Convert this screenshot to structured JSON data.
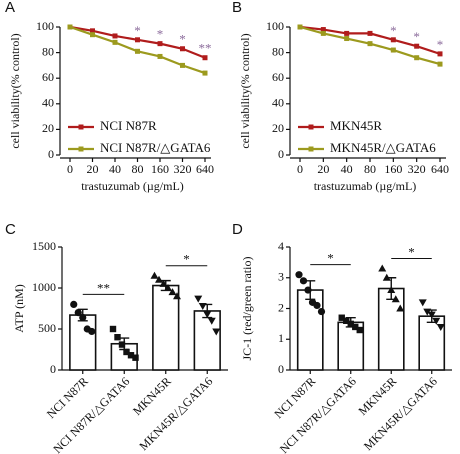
{
  "chart_data": [
    {
      "type": "line",
      "panel_label": "A",
      "xlabel": "trastuzumab (µg/mL)",
      "ylabel": "cell viability(% control)",
      "categories": [
        "0",
        "20",
        "40",
        "80",
        "160",
        "320",
        "640"
      ],
      "series": [
        {
          "name": "NCI N87R",
          "color": "#b01c1c",
          "values": [
            100,
            97,
            93,
            90,
            87,
            83,
            76
          ]
        },
        {
          "name": "NCI N87R/△GATA6",
          "color": "#9c9a1e",
          "values": [
            100,
            94,
            88,
            81,
            77,
            70,
            64
          ]
        }
      ],
      "ylim": [
        0,
        100
      ],
      "yticks": [
        0,
        20,
        40,
        60,
        80,
        100
      ],
      "legend": "lower left",
      "annotations": [
        {
          "text": "*",
          "x": "80"
        },
        {
          "text": "*",
          "x": "160"
        },
        {
          "text": "*",
          "x": "320"
        },
        {
          "text": "**",
          "x": "640"
        }
      ]
    },
    {
      "type": "line",
      "panel_label": "B",
      "xlabel": "trastuzumab (µg/mL)",
      "ylabel": "cell viability(% control)",
      "categories": [
        "0",
        "20",
        "40",
        "80",
        "160",
        "320",
        "640"
      ],
      "series": [
        {
          "name": "MKN45R",
          "color": "#b01c1c",
          "values": [
            100,
            98,
            95,
            95,
            90,
            85,
            79
          ]
        },
        {
          "name": "MKN45R/△GATA6",
          "color": "#9c9a1e",
          "values": [
            100,
            95,
            91,
            87,
            82,
            76,
            71
          ]
        }
      ],
      "ylim": [
        0,
        100
      ],
      "yticks": [
        0,
        20,
        40,
        60,
        80,
        100
      ],
      "legend": "lower left",
      "annotations": [
        {
          "text": "*",
          "x": "160"
        },
        {
          "text": "*",
          "x": "320"
        },
        {
          "text": "*",
          "x": "640"
        }
      ]
    },
    {
      "type": "bar",
      "panel_label": "C",
      "ylabel": "ATP (nM)",
      "categories": [
        "NCI N87R",
        "NCI N87R/△GATA6",
        "MKN45R",
        "MKN45R/△GATA6"
      ],
      "values": [
        670,
        320,
        1030,
        720
      ],
      "errors": [
        70,
        70,
        60,
        80
      ],
      "points": [
        [
          800,
          700,
          640,
          500,
          470
        ],
        [
          500,
          400,
          310,
          220,
          180,
          150
        ],
        [
          1150,
          1100,
          1050,
          1000,
          950,
          900
        ],
        [
          870,
          780,
          680,
          600,
          470
        ]
      ],
      "markers": [
        "circle",
        "square",
        "triangle",
        "triangle-down"
      ],
      "color": "#ffffff",
      "ylim": [
        0,
        1500
      ],
      "yticks": [
        0,
        500,
        1000,
        1500
      ],
      "annotations": [
        {
          "text": "**",
          "from": "NCI N87R",
          "to": "NCI N87R/△GATA6"
        },
        {
          "text": "*",
          "from": "MKN45R",
          "to": "MKN45R/△GATA6"
        }
      ]
    },
    {
      "type": "bar",
      "panel_label": "D",
      "ylabel": "JC-1 (red/green ratio)",
      "categories": [
        "NCI N87R",
        "NCI N87R/△GATA6",
        "MKN45R",
        "MKN45R/△GATA6"
      ],
      "values": [
        2.6,
        1.55,
        2.65,
        1.75
      ],
      "errors": [
        0.3,
        0.15,
        0.35,
        0.2
      ],
      "points": [
        [
          3.1,
          2.9,
          2.6,
          2.2,
          2.1,
          1.9
        ],
        [
          1.7,
          1.6,
          1.5,
          1.4,
          1.3
        ],
        [
          3.3,
          3.0,
          2.6,
          2.3,
          2.0
        ],
        [
          2.2,
          1.9,
          1.8,
          1.6,
          1.4
        ]
      ],
      "markers": [
        "circle",
        "square",
        "triangle",
        "triangle-down"
      ],
      "color": "#ffffff",
      "ylim": [
        0,
        4
      ],
      "yticks": [
        0,
        1,
        2,
        3,
        4
      ],
      "annotations": [
        {
          "text": "*",
          "from": "NCI N87R",
          "to": "NCI N87R/△GATA6"
        },
        {
          "text": "*",
          "from": "MKN45R",
          "to": "MKN45R/△GATA6"
        }
      ]
    }
  ]
}
